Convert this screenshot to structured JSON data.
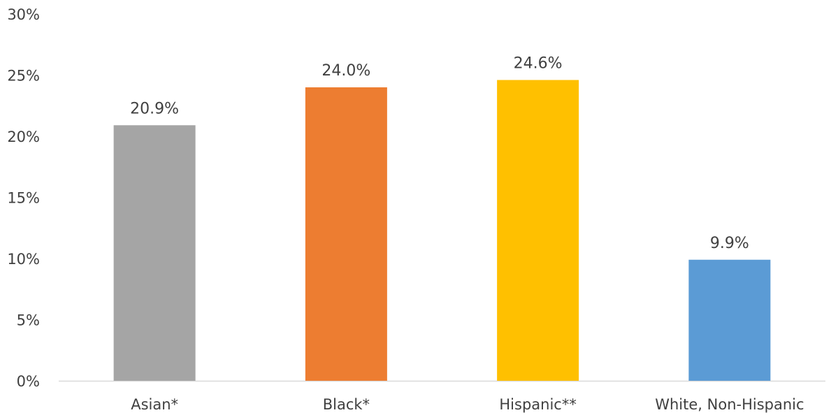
{
  "chart_data": {
    "type": "bar",
    "title": "",
    "xlabel": "",
    "ylabel": "",
    "categories": [
      "Asian*",
      "Black*",
      "Hispanic**",
      "White, Non-Hispanic"
    ],
    "values": [
      20.9,
      24.0,
      24.6,
      9.9
    ],
    "data_labels": [
      "20.9%",
      "24.0%",
      "24.6%",
      "9.9%"
    ],
    "colors": [
      "#a5a5a5",
      "#ed7d31",
      "#ffc000",
      "#5b9bd5"
    ],
    "ylim": [
      0,
      30
    ],
    "yticks": [
      0,
      5,
      10,
      15,
      20,
      25,
      30
    ],
    "ytick_labels": [
      "0%",
      "5%",
      "10%",
      "15%",
      "20%",
      "25%",
      "30%"
    ],
    "grid": false,
    "legend": "none",
    "axis_color": "#d9d9d9"
  }
}
